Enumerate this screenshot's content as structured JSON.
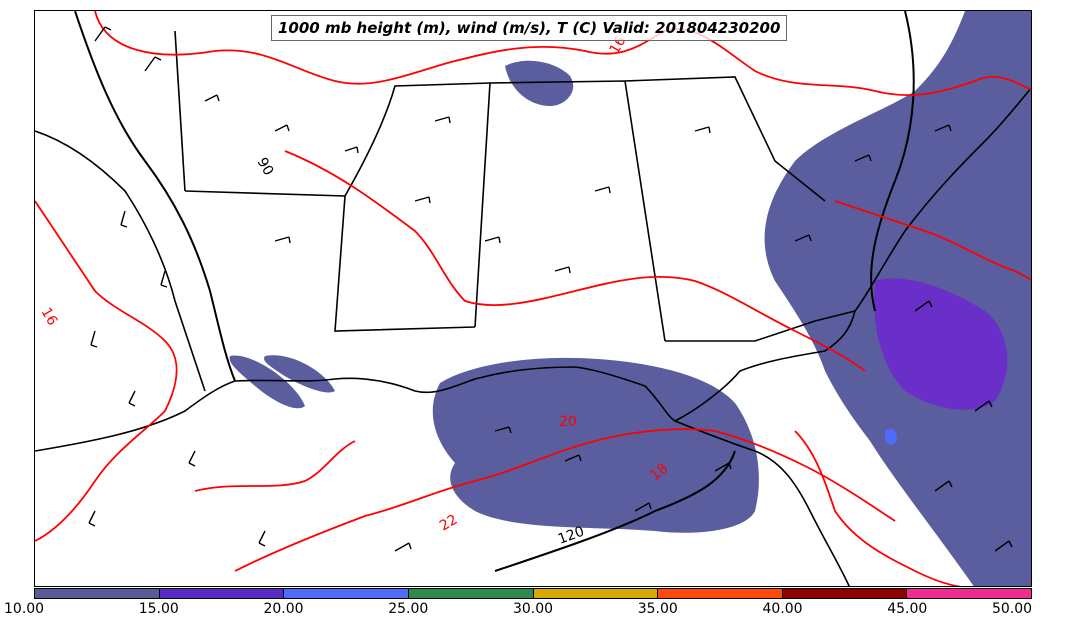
{
  "title": "1000 mb height (m), wind (m/s), T (C) Valid: 201804230200",
  "contour_labels": {
    "temp_16_north": "16",
    "temp_16_west": "16",
    "temp_22": "22",
    "temp_20": "20",
    "temp_18": "18",
    "height_90": "90",
    "height_120": "120"
  },
  "colors": {
    "temperature_contour": "#ff0000",
    "height_contour": "#000000",
    "wind_barb": "#000000",
    "shading_primary": "#5a5e9e",
    "shading_secondary": "#6a2fc9"
  },
  "colorbar": {
    "ticks": [
      "10.00",
      "15.00",
      "20.00",
      "25.00",
      "30.00",
      "35.00",
      "40.00",
      "45.00",
      "50.00"
    ],
    "colors": [
      "#575c99",
      "#5a2ac4",
      "#4f6bfb",
      "#2e8a4f",
      "#d4aa00",
      "#ff4a0a",
      "#8c0000",
      "#f32a91"
    ]
  }
}
